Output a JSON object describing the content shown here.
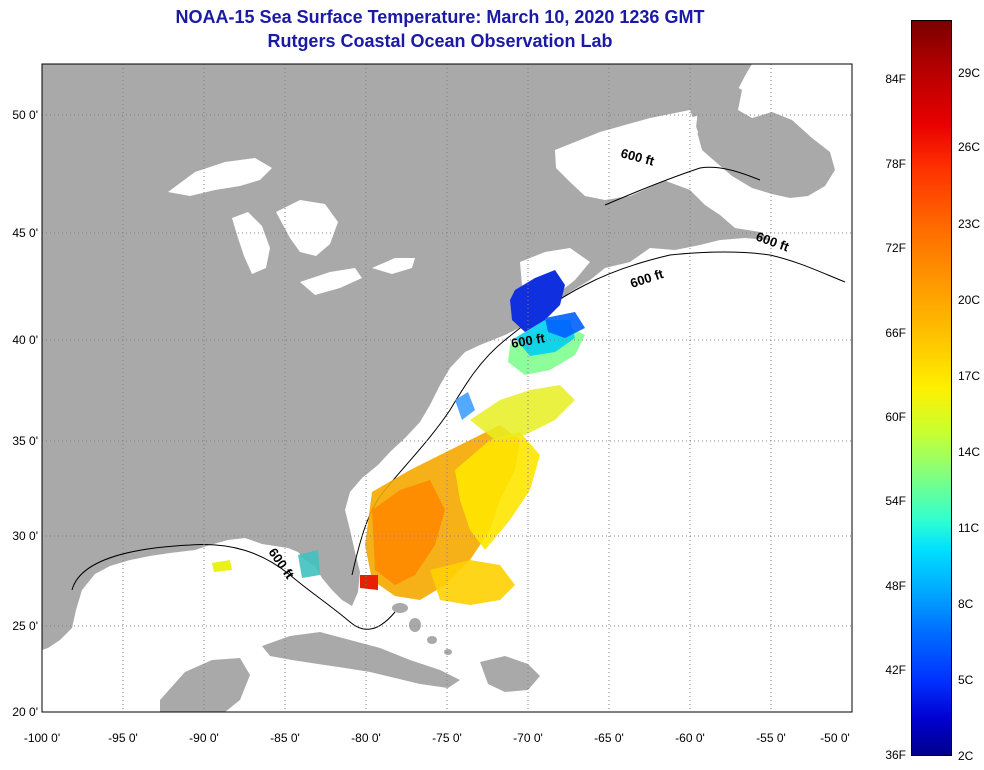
{
  "title": {
    "line1": "NOAA-15 Sea Surface Temperature:  March 10, 2020 1236 GMT",
    "line2": "Rutgers Coastal Ocean Observation Lab"
  },
  "map": {
    "lon_range": [
      -100,
      -50
    ],
    "lat_range": [
      20,
      52.5
    ],
    "x_ticks": [
      "-100 0'",
      "-95 0'",
      "-90 0'",
      "-85 0'",
      "-80 0'",
      "-75 0'",
      "-70 0'",
      "-65 0'",
      "-60 0'",
      "-55 0'",
      "-50 0'"
    ],
    "y_ticks": [
      "50 0'",
      "45 0'",
      "40 0'",
      "35 0'",
      "30 0'",
      "25 0'",
      "20 0'"
    ],
    "contour_labels": [
      "600 ft",
      "600 ft",
      "600 ft",
      "600 ft",
      "600 ft"
    ],
    "colors": {
      "land": "#a9a9a9",
      "ocean": "#ffffff",
      "grid": "#7f7f7f"
    }
  },
  "colorbar": {
    "fahrenheit_labels": [
      "84F",
      "78F",
      "72F",
      "66F",
      "60F",
      "54F",
      "48F",
      "42F",
      "36F"
    ],
    "celsius_labels": [
      "29C",
      "26C",
      "23C",
      "20C",
      "17C",
      "14C",
      "11C",
      "8C",
      "5C",
      "2C"
    ]
  }
}
